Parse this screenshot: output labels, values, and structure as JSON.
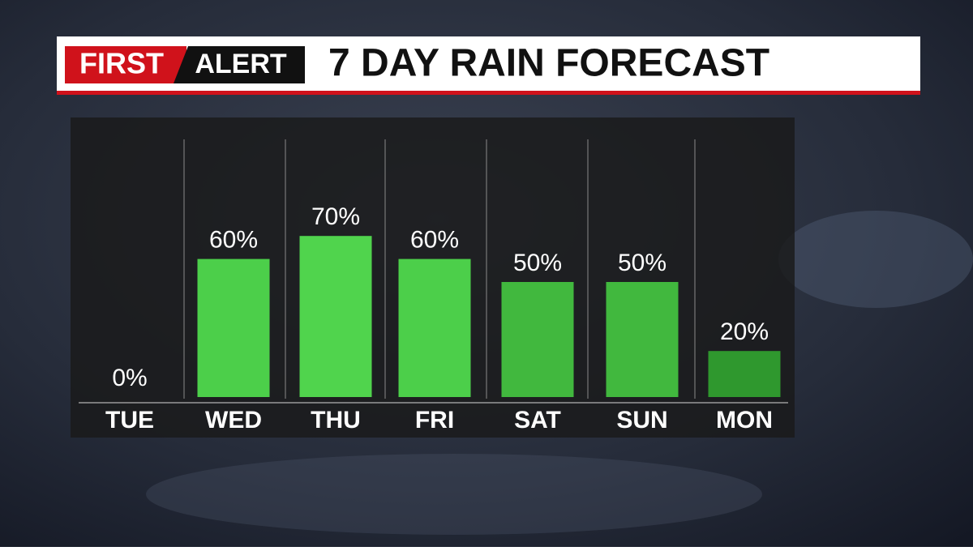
{
  "chart_data": {
    "type": "bar",
    "logo": {
      "first": "FIRST",
      "alert": "ALERT"
    },
    "title": "7 DAY RAIN FORECAST",
    "categories": [
      "TUE",
      "WED",
      "THU",
      "FRI",
      "SAT",
      "SUN",
      "MON"
    ],
    "values": [
      0,
      60,
      70,
      60,
      50,
      50,
      20
    ],
    "value_labels": [
      "0%",
      "60%",
      "70%",
      "60%",
      "50%",
      "50%",
      "20%"
    ],
    "colors": [
      "#4ccf4a",
      "#4ccf4a",
      "#50d44d",
      "#4ccf4a",
      "#41b83e",
      "#41b83e",
      "#2f982e"
    ]
  }
}
